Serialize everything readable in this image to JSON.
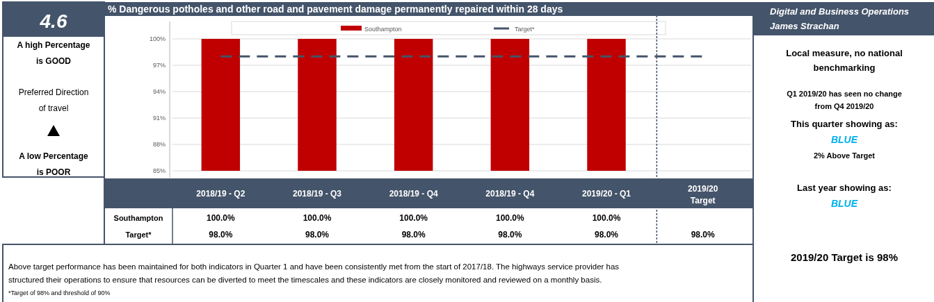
{
  "chart_data": {
    "type": "bar",
    "title": "% Dangerous potholes and other road and pavement damage permanently repaired within 28 days",
    "categories": [
      "2018/19 - Q2",
      "2018/19 - Q3",
      "2018/19 - Q4",
      "2018/19 - Q4",
      "2019/20 - Q1",
      "2019/20 Target"
    ],
    "series": [
      {
        "name": "Southampton",
        "color": "#c00000",
        "values": [
          100,
          100,
          100,
          100,
          100,
          null
        ],
        "value_labels": [
          "100.0%",
          "100.0%",
          "100.0%",
          "100.0%",
          "100.0%",
          null
        ]
      },
      {
        "name": "Target*",
        "type": "line",
        "color": "#44546a",
        "line_style": "dashed",
        "marker": "none",
        "values": [
          98,
          98,
          98,
          98,
          98,
          98
        ],
        "value_labels": [
          "98.0%",
          "98.0%",
          "98.0%",
          "98.0%",
          "98.0%",
          "98.0%"
        ]
      }
    ],
    "ylim": [
      85,
      100
    ],
    "yticks": [
      {
        "value": 85,
        "label": "85%"
      },
      {
        "value": 88,
        "label": "88%"
      },
      {
        "value": 91,
        "label": "91%"
      },
      {
        "value": 94,
        "label": "94%"
      },
      {
        "value": 97,
        "label": "97%"
      },
      {
        "value": 100,
        "label": "100%"
      }
    ],
    "grid": "y",
    "legend": "top",
    "annotations": [
      "4.6",
      "A high Percentage",
      "is GOOD",
      "Preferred Direction",
      "of travel",
      "A low Percentage",
      "is POOR",
      "Digital and Business Operations",
      "James Strachan",
      "Local measure, no national",
      "benchmarking",
      "Q1 2019/20 has seen no change",
      "from Q4 2019/20",
      "This quarter showing as:",
      "BLUE",
      "2% Above Target",
      "Last year showing as:",
      "BLUE",
      "2019/20 Target is 98%",
      "Above target performance has been maintained for both indicators in Quarter 1 and have been consistently met from the start of 2017/18. The highways service provider has",
      "structured their operations to ensure that resources can be diverted to meet the timescales and these indicators are closely monitored and reviewed on a monthly basis.",
      "*Target of 98% and threshold of 90%"
    ]
  }
}
